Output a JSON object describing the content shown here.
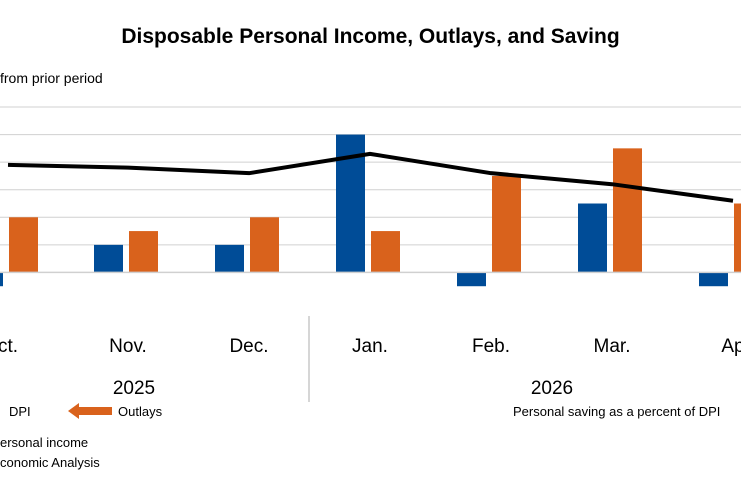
{
  "chart_data": {
    "type": "bar",
    "title": "Disposable Personal Income, Outlays, and Saving",
    "units_label": "from prior period",
    "categories": [
      "ct.",
      "Nov.",
      "Dec.",
      "Jan.",
      "Feb.",
      "Mar.",
      "Ap"
    ],
    "year_groups": [
      {
        "label": "2025",
        "categories": [
          "ct.",
          "Nov.",
          "Dec."
        ]
      },
      {
        "label": "2026",
        "categories": [
          "Jan.",
          "Feb.",
          "Mar.",
          "Ap"
        ]
      }
    ],
    "ylim": [
      -1.0,
      6.0
    ],
    "grid": true,
    "series": [
      {
        "name": "DPI",
        "kind": "bar",
        "color": "#004C97",
        "values": [
          -0.5,
          1.0,
          1.0,
          5.0,
          -0.5,
          2.5,
          -0.5
        ]
      },
      {
        "name": "Outlays",
        "kind": "bar",
        "color": "#D9621C",
        "values": [
          2.0,
          1.5,
          2.0,
          1.5,
          3.5,
          4.5,
          2.5
        ]
      },
      {
        "name": "Personal saving as a percent of DPI",
        "kind": "line",
        "color": "#000000",
        "values": [
          3.9,
          3.8,
          3.6,
          4.3,
          3.6,
          3.2,
          2.6
        ]
      }
    ]
  },
  "legend": {
    "dpi_label": "DPI",
    "outlays_label": "Outlays",
    "saving_label": "Personal saving as a percent of DPI"
  },
  "footer": {
    "note": "ersonal income",
    "source": "conomic Analysis"
  }
}
